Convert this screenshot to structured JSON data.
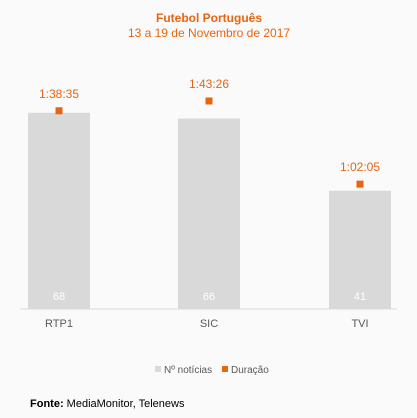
{
  "chart_data": {
    "type": "bar",
    "title": "Futebol Português",
    "subtitle": "13 a 19 de Novembro de 2017",
    "categories": [
      "RTP1",
      "SIC",
      "TVI"
    ],
    "series": [
      {
        "name": "Nº notícias",
        "values": [
          68,
          66,
          41
        ],
        "color": "#d9d9d9"
      },
      {
        "name": "Duração",
        "values": [
          "1:38:35",
          "1:43:26",
          "1:02:05"
        ],
        "seconds": [
          5915,
          6206,
          3725
        ],
        "color": "#e8650f"
      }
    ],
    "legend_position": "bottom",
    "grid": false
  },
  "source": {
    "label": "Fonte:",
    "text": "MediaMonitor, Telenews"
  }
}
